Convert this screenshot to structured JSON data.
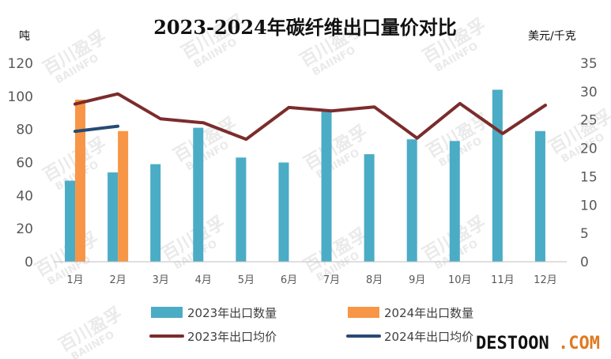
{
  "chart_data": {
    "type": "bar",
    "title": "2023-2024年碳纤维出口量价对比",
    "left_axis_unit": "吨",
    "right_axis_unit": "美元/千克",
    "categories": [
      "1月",
      "2月",
      "3月",
      "4月",
      "5月",
      "6月",
      "7月",
      "8月",
      "9月",
      "10月",
      "11月",
      "12月"
    ],
    "ylim": [
      0,
      120
    ],
    "y_ticks": [
      0,
      20,
      40,
      60,
      80,
      100,
      120
    ],
    "y2lim": [
      0,
      35
    ],
    "y2_ticks": [
      0,
      5,
      10,
      15,
      20,
      25,
      30,
      35
    ],
    "grid": false,
    "legend_position": "bottom",
    "series": [
      {
        "name": "2023年出口数量",
        "kind": "bar",
        "axis": "left",
        "color": "#4bacc6",
        "values": [
          49,
          54,
          59,
          81,
          63,
          60,
          91,
          65,
          74,
          73,
          104,
          79
        ]
      },
      {
        "name": "2024年出口数量",
        "kind": "bar",
        "axis": "left",
        "color": "#f79646",
        "values": [
          98,
          79,
          null,
          null,
          null,
          null,
          null,
          null,
          null,
          null,
          null,
          null
        ]
      },
      {
        "name": "2023年出口均价",
        "kind": "line",
        "axis": "right",
        "color": "#7b2c2c",
        "values": [
          27.8,
          29.6,
          25.2,
          24.5,
          21.6,
          27.2,
          26.6,
          27.3,
          21.8,
          27.9,
          22.6,
          27.6
        ]
      },
      {
        "name": "2024年出口均价",
        "kind": "line",
        "axis": "right",
        "color": "#264b73",
        "values": [
          23.0,
          23.9,
          null,
          null,
          null,
          null,
          null,
          null,
          null,
          null,
          null,
          null
        ]
      }
    ]
  },
  "watermark": {
    "text": "百川盈孚",
    "subtext": "BAIINFO"
  },
  "logo": {
    "part1": "DESTOON",
    "part2": ".COM"
  }
}
